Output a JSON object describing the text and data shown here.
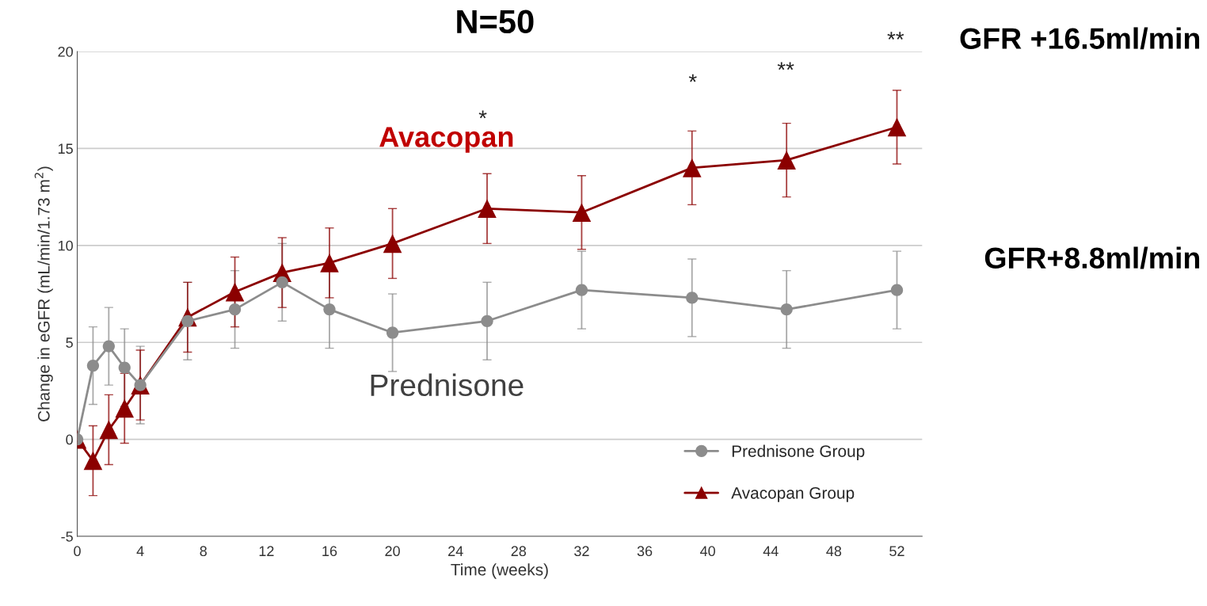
{
  "chart_data": {
    "type": "line",
    "xlabel": "Time (weeks)",
    "ylabel": "Change in eGFR (mL/min/1.73 m$^{2}$)",
    "xlim": [
      0,
      53.6
    ],
    "xticks": [
      0,
      4,
      8,
      12,
      16,
      20,
      24,
      28,
      32,
      36,
      40,
      44,
      48,
      52
    ],
    "ylim": [
      -5,
      20
    ],
    "yticks": [
      -5,
      0,
      5,
      10,
      15,
      20
    ],
    "grid": "y",
    "legend": "bottom right",
    "series": [
      {
        "name": "Prednisone Group",
        "color": "#8c8c8c",
        "marker": "circle",
        "x": [
          0,
          1,
          2,
          3,
          4,
          7,
          10,
          13,
          16,
          20,
          26,
          32,
          39,
          45,
          52
        ],
        "values": [
          0,
          3.8,
          4.8,
          3.7,
          2.8,
          6.1,
          6.7,
          8.1,
          6.7,
          5.5,
          6.1,
          7.7,
          7.3,
          6.7,
          7.7
        ],
        "errors": [
          null,
          2,
          2,
          2,
          2,
          2,
          2,
          2,
          2,
          2,
          2,
          2,
          2,
          2,
          2
        ]
      },
      {
        "name": "Avacopan Group",
        "color": "#8b0000",
        "marker": "triangle",
        "x": [
          0,
          1,
          2,
          3,
          4,
          7,
          10,
          13,
          16,
          20,
          26,
          32,
          39,
          45,
          52
        ],
        "values": [
          0,
          -1.1,
          0.5,
          1.6,
          2.8,
          6.3,
          7.6,
          8.6,
          9.1,
          10.1,
          11.9,
          11.7,
          14.0,
          14.4,
          16.1
        ],
        "errors": [
          null,
          1.8,
          1.8,
          1.8,
          1.8,
          1.8,
          1.8,
          1.8,
          1.8,
          1.8,
          1.8,
          1.9,
          1.9,
          1.9,
          1.9
        ]
      }
    ],
    "annotations": [
      "N=50",
      "GFR +16.5ml/min",
      "GFR+8.8ml/min",
      "Avacopan",
      "Prednisone",
      "*",
      "*",
      "**",
      "**"
    ]
  }
}
